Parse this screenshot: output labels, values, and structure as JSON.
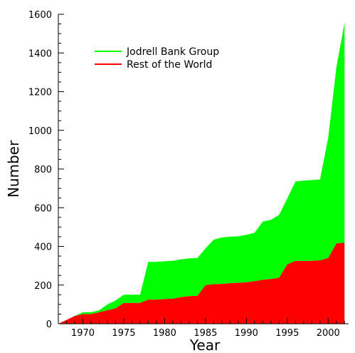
{
  "chart_data": {
    "type": "area",
    "stacked": true,
    "xlabel": "Year",
    "ylabel": "Number",
    "xlim": [
      1967,
      2002.5
    ],
    "ylim": [
      0,
      1600
    ],
    "xticks": [
      1970,
      1975,
      1980,
      1985,
      1990,
      1995,
      2000
    ],
    "yticks": [
      0,
      200,
      400,
      600,
      800,
      1000,
      1200,
      1400,
      1600
    ],
    "legend_position": "top-left",
    "grid": false,
    "x": [
      1967,
      1968,
      1969,
      1970,
      1971,
      1972,
      1973,
      1974,
      1975,
      1976,
      1977,
      1978,
      1979,
      1980,
      1981,
      1982,
      1983,
      1984,
      1985,
      1986,
      1987,
      1988,
      1989,
      1990,
      1991,
      1992,
      1993,
      1994,
      1995,
      1996,
      1997,
      1998,
      1999,
      2000,
      2001,
      2002
    ],
    "series": [
      {
        "name": "Rest of the World",
        "color": "#ff0000",
        "values": [
          0,
          20,
          40,
          50,
          50,
          60,
          70,
          80,
          108,
          108,
          108,
          125,
          125,
          128,
          130,
          138,
          143,
          145,
          200,
          205,
          206,
          210,
          212,
          215,
          220,
          228,
          232,
          238,
          308,
          325,
          325,
          325,
          328,
          340,
          415,
          420
        ]
      },
      {
        "name": "Jodrell Bank Group",
        "color": "#00ff00",
        "values": [
          0,
          0,
          0,
          10,
          10,
          10,
          30,
          40,
          42,
          42,
          42,
          195,
          195,
          195,
          195,
          195,
          195,
          195,
          190,
          230,
          240,
          240,
          240,
          245,
          250,
          300,
          305,
          325,
          340,
          410,
          415,
          418,
          418,
          620,
          910,
          1135
        ]
      }
    ],
    "legend": [
      "Jodrell Bank Group",
      "Rest of the World"
    ]
  }
}
